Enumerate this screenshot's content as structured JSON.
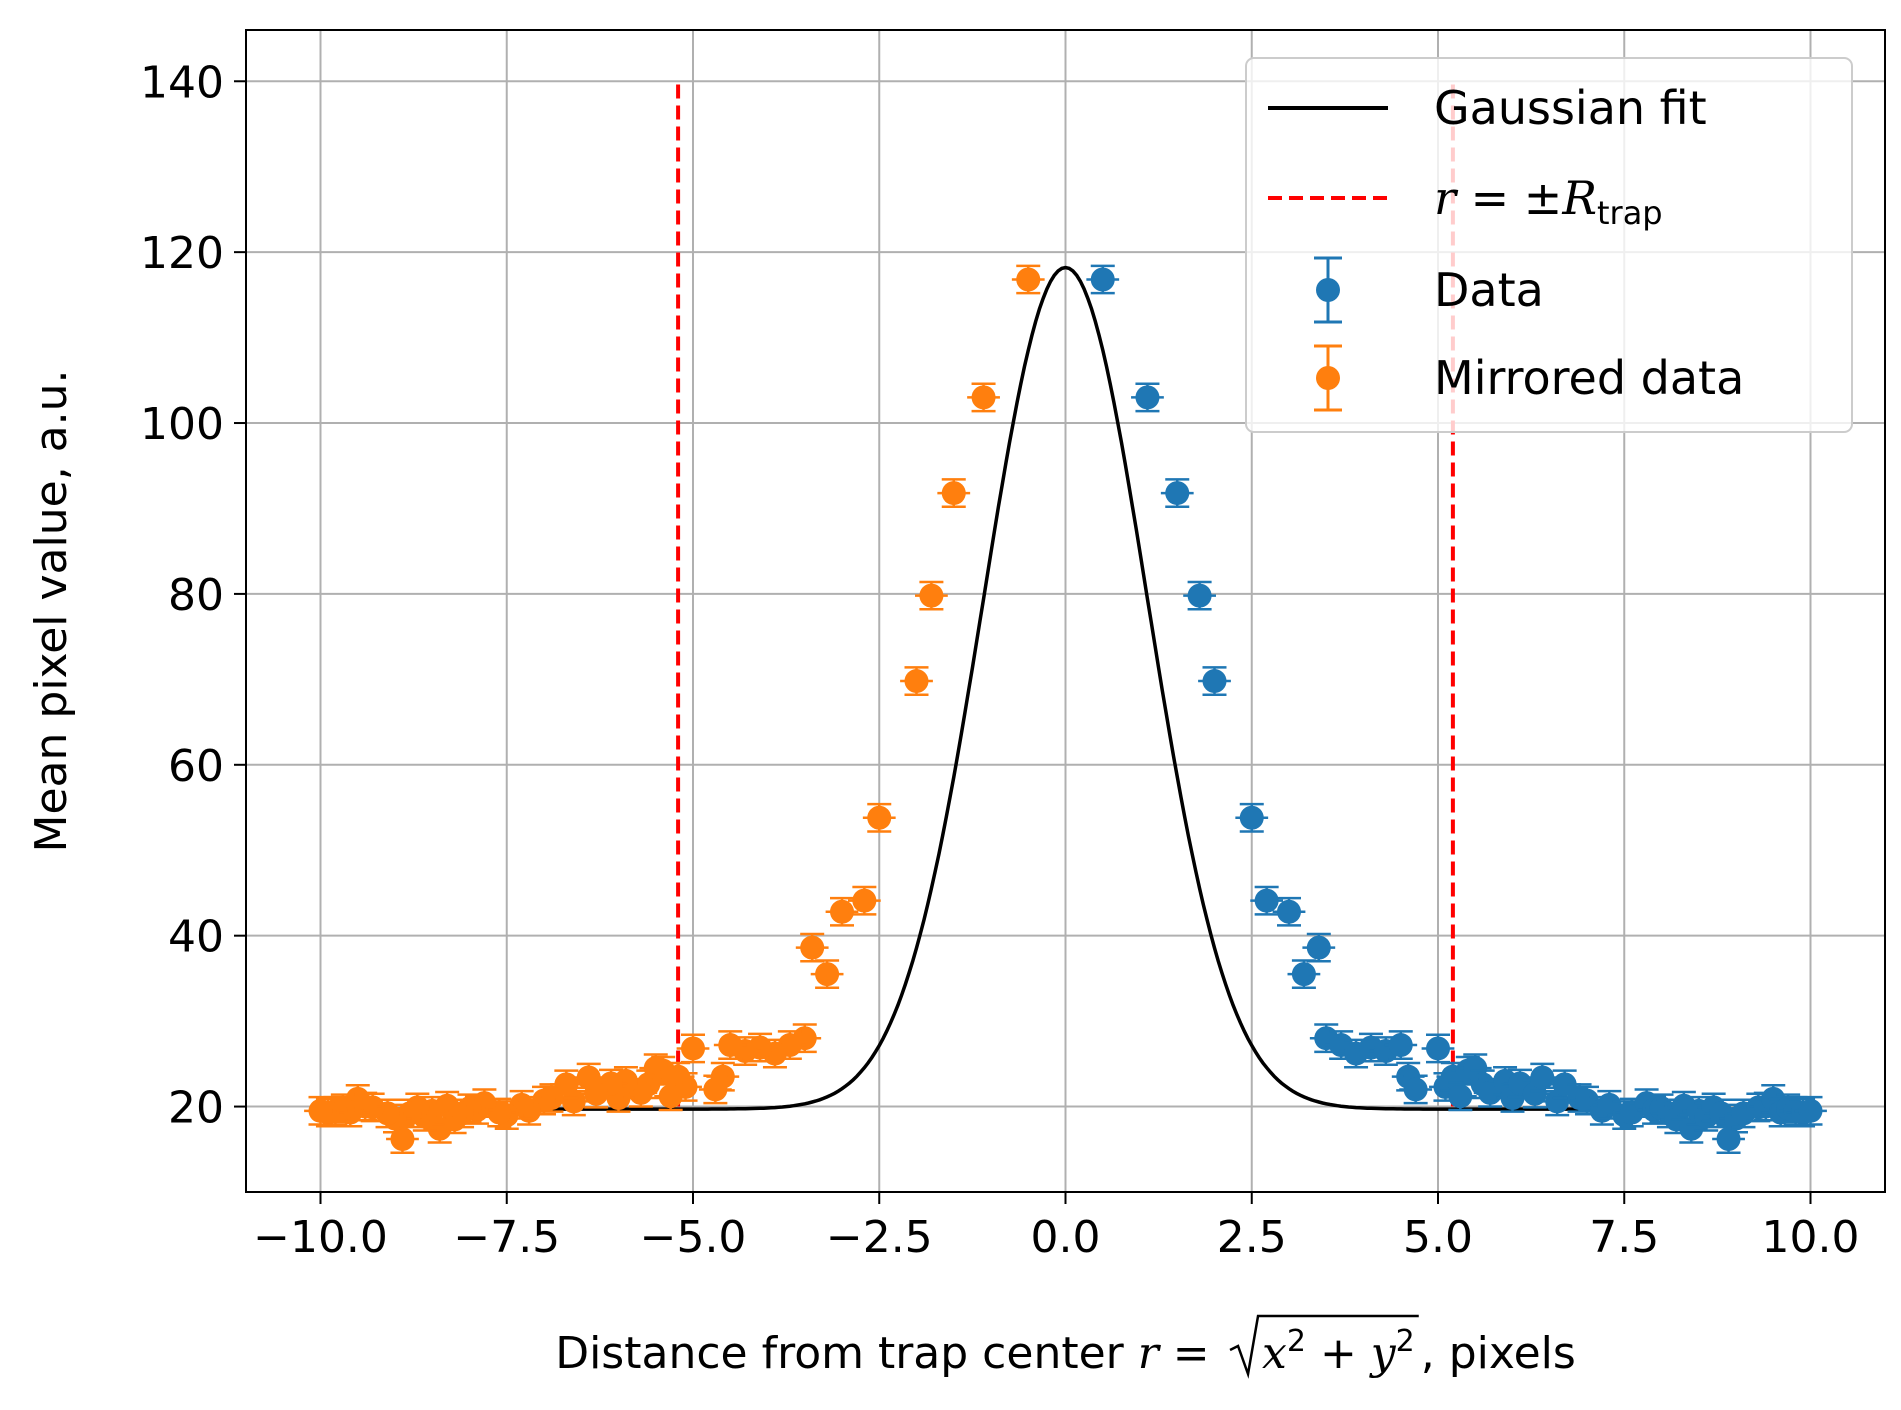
{
  "chart_data": {
    "type": "scatter",
    "xlabel_prefix": "Distance from trap center",
    "xlabel_math_r": "r",
    "xlabel_math_eq": " = ",
    "xlabel_math_x": "x",
    "xlabel_math_plus": " + ",
    "xlabel_math_y": "y",
    "xlabel_math_sup": "2",
    "xlabel_suffix": ", pixels",
    "ylabel": "Mean pixel value, a.u.",
    "xlim": [
      -11.0,
      11.0
    ],
    "ylim": [
      10,
      146
    ],
    "xticks": [
      -10.0,
      -7.5,
      -5.0,
      -2.5,
      0.0,
      2.5,
      5.0,
      7.5,
      10.0
    ],
    "xtick_labels": [
      "−10.0",
      "−7.5",
      "−5.0",
      "−2.5",
      "0.0",
      "2.5",
      "5.0",
      "7.5",
      "10.0"
    ],
    "yticks": [
      20,
      40,
      60,
      80,
      100,
      120,
      140
    ],
    "ytick_labels": [
      "20",
      "40",
      "60",
      "80",
      "100",
      "120",
      "140"
    ],
    "grid": true,
    "legend_position": "top-right",
    "legend": [
      {
        "label": "Gaussian fit",
        "style": "line",
        "color": "#000000"
      },
      {
        "label_r": "r",
        "label_eq": " = ±",
        "label_R": "R",
        "label_sub": "trap",
        "style": "dashed",
        "color": "#ff0000"
      },
      {
        "label": "Data",
        "style": "errorbar",
        "color": "#1f77b4"
      },
      {
        "label": "Mirrored data",
        "style": "errorbar",
        "color": "#ff7f0e"
      }
    ],
    "vlines": {
      "x": [
        -5.2,
        5.2
      ],
      "y_range": [
        20,
        140
      ],
      "color": "#ff0000"
    },
    "fit": {
      "type": "gaussian",
      "amplitude": 98.5,
      "mean": 0.0,
      "sigma": 1.1,
      "offset": 19.7
    },
    "xerr": 0.22,
    "yerr": 1.6,
    "series": [
      {
        "name": "Data",
        "color": "#1f77b4",
        "points": [
          [
            0.5,
            116.8
          ],
          [
            1.1,
            103.0
          ],
          [
            1.5,
            91.8
          ],
          [
            1.8,
            79.8
          ],
          [
            2.0,
            69.8
          ],
          [
            2.5,
            53.8
          ],
          [
            2.7,
            44.1
          ],
          [
            3.0,
            42.8
          ],
          [
            3.2,
            35.5
          ],
          [
            3.4,
            38.6
          ],
          [
            3.5,
            28.0
          ],
          [
            3.7,
            27.2
          ],
          [
            3.9,
            26.2
          ],
          [
            4.1,
            26.9
          ],
          [
            4.3,
            26.5
          ],
          [
            4.5,
            27.2
          ],
          [
            4.6,
            23.5
          ],
          [
            4.7,
            22.0
          ],
          [
            5.0,
            26.8
          ],
          [
            5.1,
            22.3
          ],
          [
            5.2,
            23.5
          ],
          [
            5.3,
            21.2
          ],
          [
            5.4,
            24.2
          ],
          [
            5.5,
            24.5
          ],
          [
            5.6,
            22.6
          ],
          [
            5.7,
            21.6
          ],
          [
            5.9,
            23.0
          ],
          [
            6.0,
            21.0
          ],
          [
            6.1,
            22.7
          ],
          [
            6.3,
            21.5
          ],
          [
            6.4,
            23.4
          ],
          [
            6.6,
            20.6
          ],
          [
            6.7,
            22.6
          ],
          [
            6.9,
            21.0
          ],
          [
            7.0,
            20.7
          ],
          [
            7.2,
            19.5
          ],
          [
            7.3,
            20.2
          ],
          [
            7.5,
            19.0
          ],
          [
            7.6,
            19.3
          ],
          [
            7.8,
            20.4
          ],
          [
            7.9,
            19.6
          ],
          [
            8.0,
            19.8
          ],
          [
            8.1,
            19.2
          ],
          [
            8.2,
            18.5
          ],
          [
            8.3,
            20.1
          ],
          [
            8.4,
            17.4
          ],
          [
            8.5,
            19.5
          ],
          [
            8.6,
            18.8
          ],
          [
            8.7,
            19.9
          ],
          [
            8.8,
            19.2
          ],
          [
            8.9,
            16.2
          ],
          [
            9.0,
            18.6
          ],
          [
            9.1,
            19.2
          ],
          [
            9.3,
            19.9
          ],
          [
            9.4,
            20.0
          ],
          [
            9.5,
            20.9
          ],
          [
            9.6,
            19.3
          ],
          [
            9.7,
            19.8
          ],
          [
            9.8,
            19.5
          ],
          [
            9.9,
            19.3
          ],
          [
            10.0,
            19.5
          ]
        ]
      },
      {
        "name": "Mirrored data",
        "color": "#ff7f0e",
        "points": [
          [
            -0.5,
            116.8
          ],
          [
            -1.1,
            103.0
          ],
          [
            -1.5,
            91.8
          ],
          [
            -1.8,
            79.8
          ],
          [
            -2.0,
            69.8
          ],
          [
            -2.5,
            53.8
          ],
          [
            -2.7,
            44.1
          ],
          [
            -3.0,
            42.8
          ],
          [
            -3.2,
            35.5
          ],
          [
            -3.4,
            38.6
          ],
          [
            -3.5,
            28.0
          ],
          [
            -3.7,
            27.2
          ],
          [
            -3.9,
            26.2
          ],
          [
            -4.1,
            26.9
          ],
          [
            -4.3,
            26.5
          ],
          [
            -4.5,
            27.2
          ],
          [
            -4.6,
            23.5
          ],
          [
            -4.7,
            22.0
          ],
          [
            -5.0,
            26.8
          ],
          [
            -5.1,
            22.3
          ],
          [
            -5.2,
            23.5
          ],
          [
            -5.3,
            21.2
          ],
          [
            -5.4,
            24.2
          ],
          [
            -5.5,
            24.5
          ],
          [
            -5.6,
            22.6
          ],
          [
            -5.7,
            21.6
          ],
          [
            -5.9,
            23.0
          ],
          [
            -6.0,
            21.0
          ],
          [
            -6.1,
            22.7
          ],
          [
            -6.3,
            21.5
          ],
          [
            -6.4,
            23.4
          ],
          [
            -6.6,
            20.6
          ],
          [
            -6.7,
            22.6
          ],
          [
            -6.9,
            21.0
          ],
          [
            -7.0,
            20.7
          ],
          [
            -7.2,
            19.5
          ],
          [
            -7.3,
            20.2
          ],
          [
            -7.5,
            19.0
          ],
          [
            -7.6,
            19.3
          ],
          [
            -7.8,
            20.4
          ],
          [
            -7.9,
            19.6
          ],
          [
            -8.0,
            19.8
          ],
          [
            -8.1,
            19.2
          ],
          [
            -8.2,
            18.5
          ],
          [
            -8.3,
            20.1
          ],
          [
            -8.4,
            17.4
          ],
          [
            -8.5,
            19.5
          ],
          [
            -8.6,
            18.8
          ],
          [
            -8.7,
            19.9
          ],
          [
            -8.8,
            19.2
          ],
          [
            -8.9,
            16.2
          ],
          [
            -9.0,
            18.6
          ],
          [
            -9.1,
            19.2
          ],
          [
            -9.3,
            19.9
          ],
          [
            -9.4,
            20.0
          ],
          [
            -9.5,
            20.9
          ],
          [
            -9.6,
            19.3
          ],
          [
            -9.7,
            19.8
          ],
          [
            -9.8,
            19.5
          ],
          [
            -9.9,
            19.3
          ],
          [
            -10.0,
            19.5
          ]
        ]
      }
    ]
  }
}
